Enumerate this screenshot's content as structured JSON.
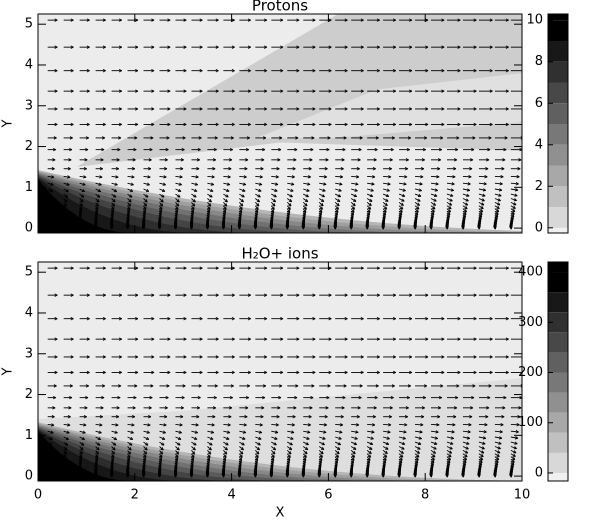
{
  "chart_data": [
    {
      "type": "contour",
      "title": "Protons",
      "ylabel": "Y",
      "xlim": [
        0,
        10
      ],
      "xticks": [
        0,
        2,
        4,
        6,
        8,
        10
      ],
      "ylim": [
        -0.12,
        5.25
      ],
      "yticks": [
        0,
        1,
        2,
        3,
        4,
        5
      ],
      "colorbar": {
        "lim": [
          -0.25,
          10.3
        ],
        "ticks": [
          0,
          2,
          4,
          6,
          8,
          10
        ],
        "levels": [
          0,
          1,
          2,
          3,
          4,
          5,
          6,
          7,
          8,
          9,
          10
        ]
      }
    },
    {
      "type": "contour",
      "title": "H₂O+ ions",
      "ylabel": "Y",
      "xlabel": "X",
      "xlim": [
        0,
        10
      ],
      "xticks": [
        0,
        2,
        4,
        6,
        8,
        10
      ],
      "ylim": [
        -0.12,
        5.25
      ],
      "yticks": [
        0,
        1,
        2,
        3,
        4,
        5
      ],
      "colorbar": {
        "lim": [
          -16,
          420
        ],
        "ticks": [
          0,
          100,
          200,
          300,
          400
        ],
        "levels": [
          0,
          40,
          80,
          120,
          160,
          200,
          240,
          280,
          320,
          360,
          400
        ]
      }
    }
  ]
}
